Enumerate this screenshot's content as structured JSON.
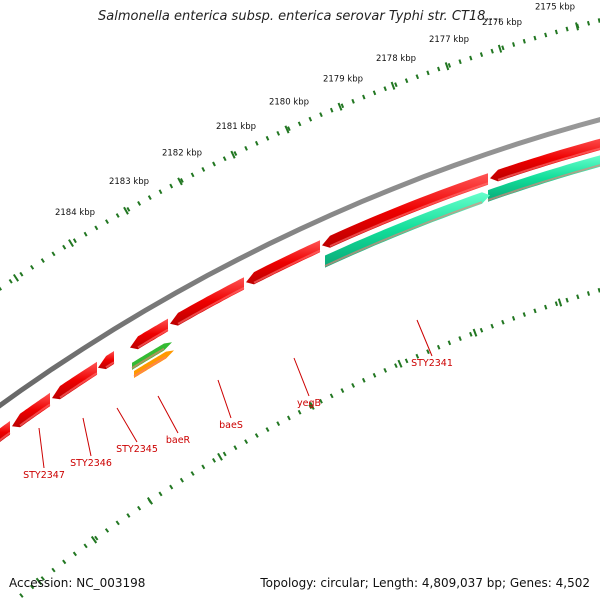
{
  "title": "Salmonella enterica subsp. enterica serovar Typhi str. CT18,...",
  "footer": {
    "accession": "Accession: NC_003198",
    "summary": "Topology: circular; Length: 4,809,037 bp; Genes: 4,502"
  },
  "colors": {
    "backbone": "#777777",
    "gene_forward": "#ee1111",
    "gene_reverse": "#11dd99",
    "gene_green": "#33bb33",
    "gene_orange": "#ff9900",
    "ticks": "#227722",
    "gene_label": "#cc0000"
  },
  "kbp_ticks": [
    {
      "label": "2175 kbp"
    },
    {
      "label": "2176 kbp"
    },
    {
      "label": "2177 kbp"
    },
    {
      "label": "2178 kbp"
    },
    {
      "label": "2179 kbp"
    },
    {
      "label": "2180 kbp"
    },
    {
      "label": "2181 kbp"
    },
    {
      "label": "2182 kbp"
    },
    {
      "label": "2183 kbp"
    },
    {
      "label": "2184 kbp"
    }
  ],
  "gene_labels": [
    {
      "name": "STY2341"
    },
    {
      "name": "yegB"
    },
    {
      "name": "baeS"
    },
    {
      "name": "baeR"
    },
    {
      "name": "STY2345"
    },
    {
      "name": "STY2346"
    },
    {
      "name": "STY2347"
    }
  ]
}
